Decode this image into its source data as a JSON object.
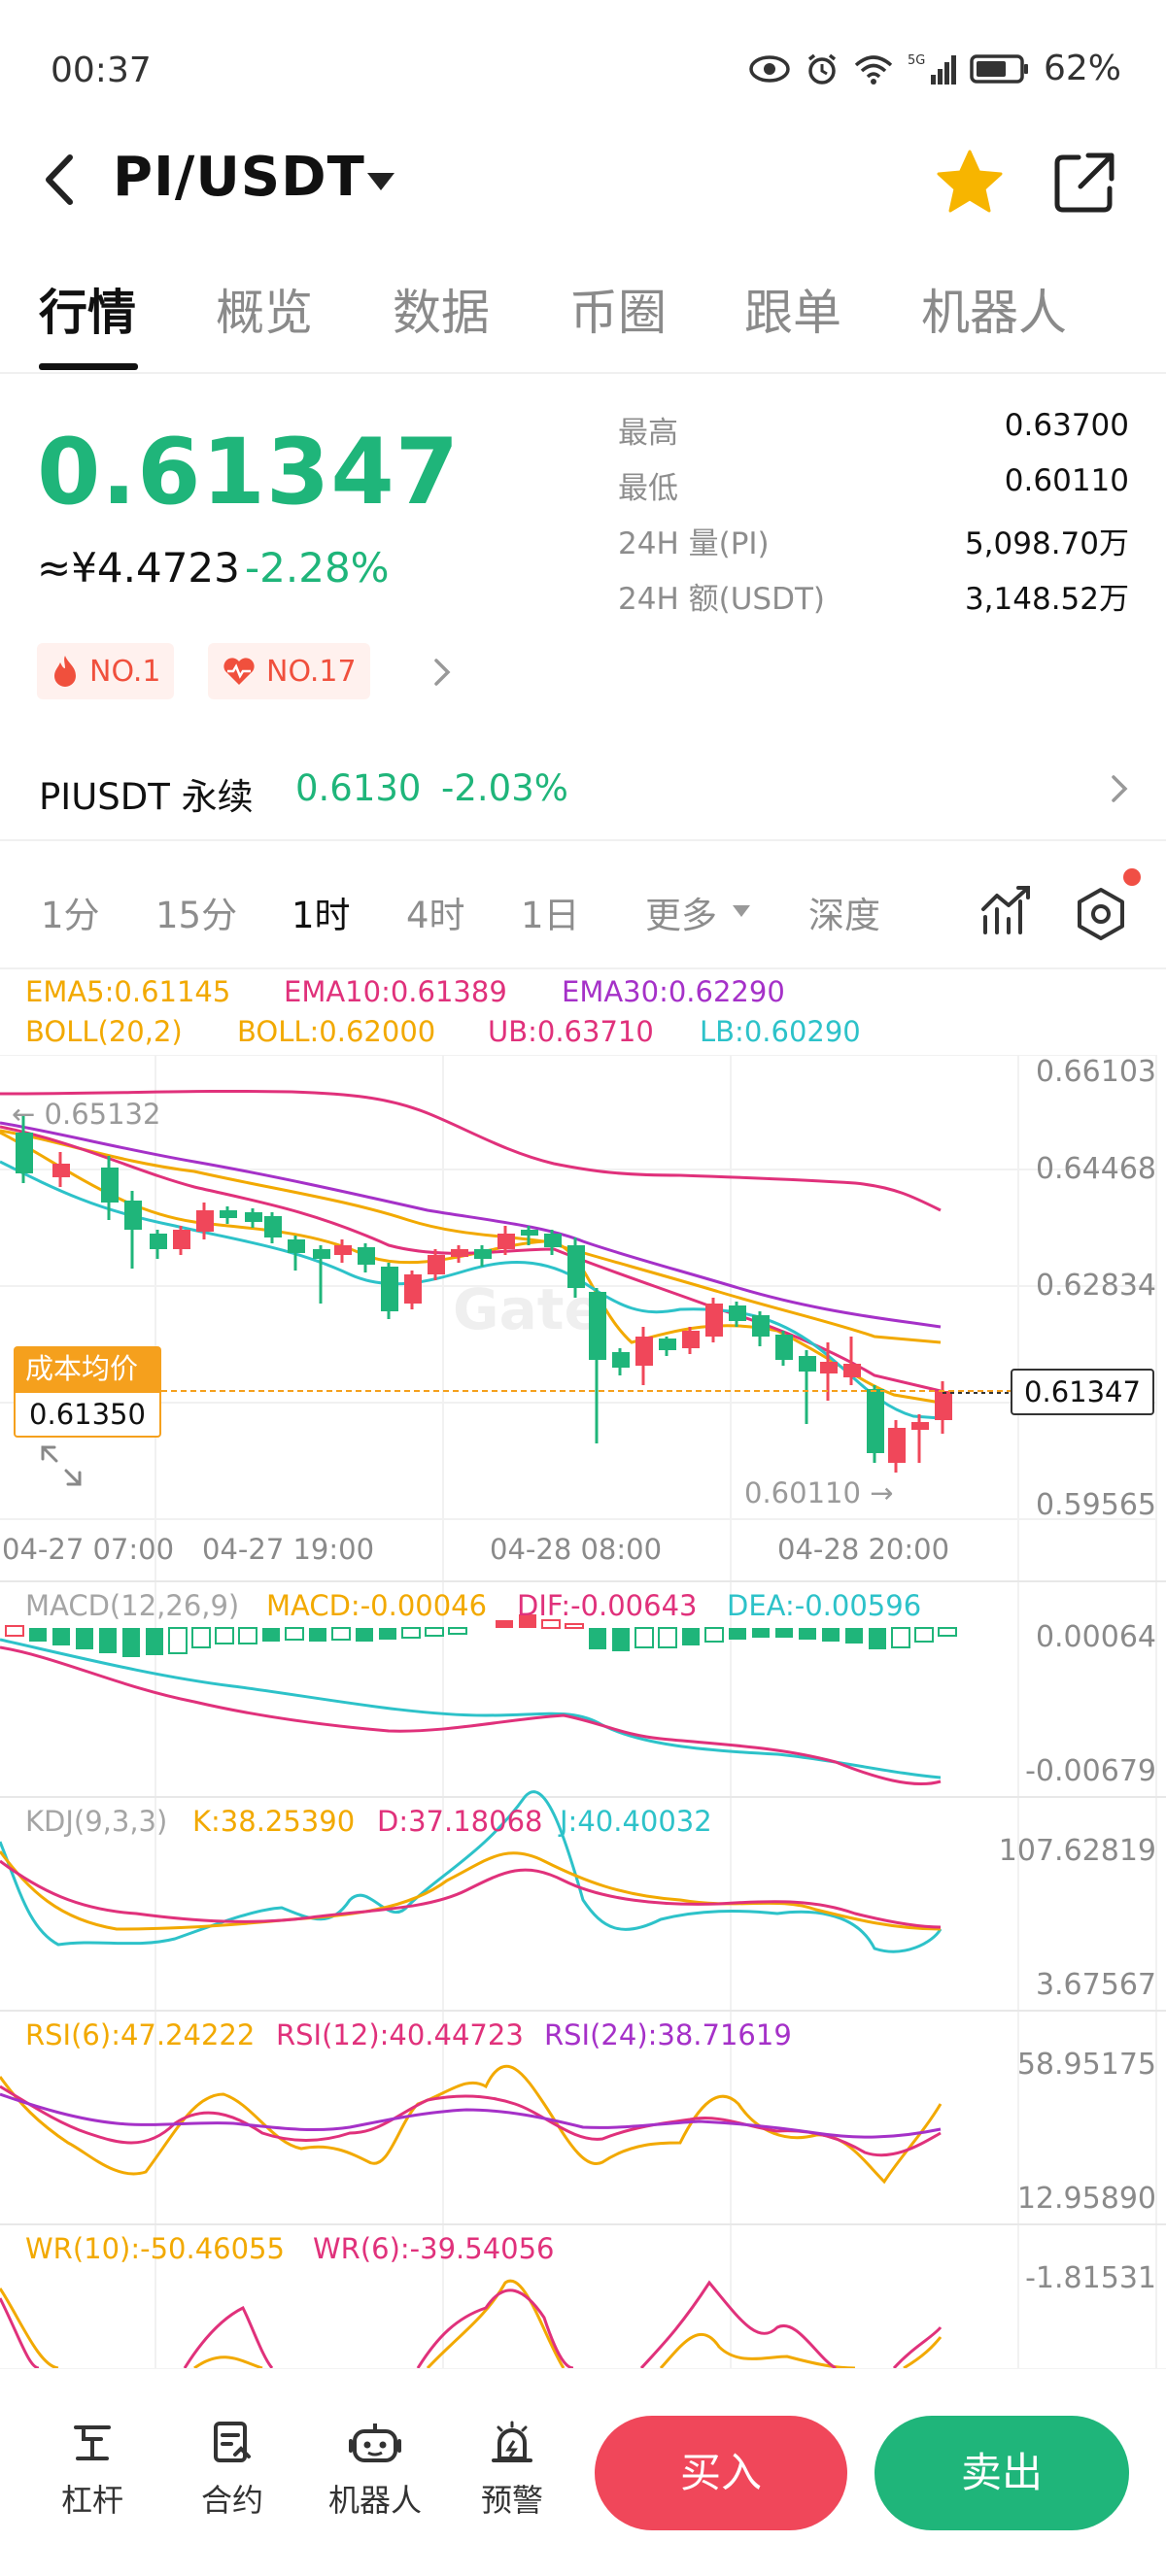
{
  "status_bar": {
    "time": "00:37",
    "battery": "62%",
    "network": "5G"
  },
  "header": {
    "pair": "PI/USDT"
  },
  "tabs": [
    "行情",
    "概览",
    "数据",
    "币圈",
    "跟单",
    "机器人"
  ],
  "price": {
    "last": "0.61347",
    "cny": "≈¥4.4723",
    "change": "-2.28%",
    "stats": [
      {
        "label": "最高",
        "value": "0.63700"
      },
      {
        "label": "最低",
        "value": "0.60110"
      },
      {
        "label": "24H 量(PI)",
        "value": "5,098.70万"
      },
      {
        "label": "24H 额(USDT)",
        "value": "3,148.52万"
      }
    ]
  },
  "badges": [
    {
      "label": "NO.1"
    },
    {
      "label": "NO.17"
    }
  ],
  "perpetual": {
    "name": "PIUSDT 永续",
    "price": "0.6130",
    "change": "-2.03%"
  },
  "intervals": {
    "items": [
      "1分",
      "15分",
      "1时",
      "4时",
      "1日"
    ],
    "active": "1时",
    "more": "更多",
    "depth": "深度"
  },
  "main_chart": {
    "legend1": [
      "EMA5:0.61145",
      "EMA10:0.61389",
      "EMA30:0.62290"
    ],
    "legend2": [
      "BOLL(20,2)",
      "BOLL:0.62000",
      "UB:0.63710",
      "LB:0.60290"
    ],
    "y_ticks": [
      "0.66103",
      "0.64468",
      "0.62834",
      "0.59565"
    ],
    "x_ticks": [
      "04-27 07:00",
      "04-27 19:00",
      "04-28 08:00",
      "04-28 20:00"
    ],
    "max_label": "0.65132",
    "min_label": "0.60110",
    "last_price_label": "0.61347",
    "cost_title": "成本均价",
    "cost_value": "0.61350",
    "watermark": "Gate"
  },
  "macd": {
    "legend": [
      "MACD(12,26,9)",
      "MACD:-0.00046",
      "DIF:-0.00643",
      "DEA:-0.00596"
    ],
    "y_ticks": [
      "0.00064",
      "-0.00679"
    ]
  },
  "kdj": {
    "legend": [
      "KDJ(9,3,3)",
      "K:38.25390",
      "D:37.18068",
      "J:40.40032"
    ],
    "y_ticks": [
      "107.62819",
      "3.67567"
    ]
  },
  "rsi": {
    "legend": [
      "RSI(6):47.24222",
      "RSI(12):40.44723",
      "RSI(24):38.71619"
    ],
    "y_ticks": [
      "58.95175",
      "12.95890"
    ]
  },
  "wr": {
    "legend": [
      "WR(10):-50.46055",
      "WR(6):-39.54056"
    ],
    "y_ticks": [
      "-1.81531"
    ]
  },
  "bottom_nav": {
    "items": [
      {
        "label": "杠杆",
        "icon": "leverage-icon"
      },
      {
        "label": "合约",
        "icon": "contract-icon"
      },
      {
        "label": "机器人",
        "icon": "robot-icon"
      },
      {
        "label": "预警",
        "icon": "alert-icon"
      }
    ],
    "buy": "买入",
    "sell": "卖出"
  },
  "colors": {
    "up": "#f0475a",
    "down": "#1fb57a",
    "ema5": "#f2a900",
    "ema10": "#e0317b",
    "ema30": "#a531c8",
    "lb": "#2dc2c9"
  }
}
